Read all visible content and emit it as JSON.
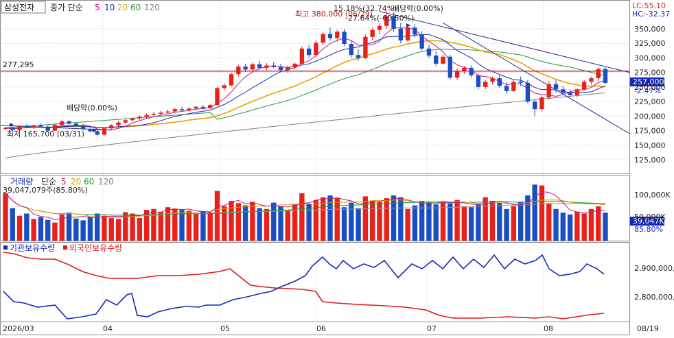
{
  "colors": {
    "up": "#e8221b",
    "down": "#1a4fc4",
    "ma5": "#c0158a",
    "ma10": "#1c2ea0",
    "ma20": "#e8a000",
    "ma60": "#1f9a3a",
    "ma120": "#808080",
    "priceLine": "#c0103a",
    "trend": "#2a2a8a",
    "vol5": "#c0158a",
    "vol20": "#d4a000",
    "vol60": "#1f9a3a",
    "vol120": "#9a9a9a",
    "inst": "#1428b8",
    "foreign": "#e01818",
    "lcColor": "#e01818",
    "hcColor": "#1428b8"
  },
  "price_panel": {
    "legend": {
      "stock": "삼성전자",
      "series": "종가 단순",
      "p5": "5",
      "p10": "10",
      "p20": "20",
      "p60": "60",
      "p120": "120"
    },
    "lc": "LC:55.10",
    "hc": "HC:-32.37",
    "ref_line_label": "277,295",
    "ref_line_value": 277295,
    "current_price_label": "257,000",
    "current_change_label": "-2.47%",
    "annotations": {
      "low": "최저 165,700 (03/31)",
      "high": "최고 380,000 (06/29)",
      "pct_high": "15.18%(32.74%)",
      "pct_high2": "-27.64%(-60.50%)",
      "div1": "배당락(0.00%)",
      "div2": "배당락(0.00%)"
    },
    "yticks": [
      "350,000",
      "325,000",
      "300,000",
      "275,000",
      "250,000",
      "225,000",
      "200,000",
      "175,000",
      "150,000",
      "125,000"
    ]
  },
  "volume_panel": {
    "legend": {
      "name": "거래량",
      "series": "단순",
      "p5": "5",
      "p20": "20",
      "p60": "60",
      "p120": "120"
    },
    "last_value_label": "39,047,079주(85.80%)",
    "current_label": "39,047K",
    "pct_label": "85.80%",
    "yticks": [
      "100,000K",
      "50,000K"
    ]
  },
  "holdings_panel": {
    "legend": {
      "inst": "기관보유수량",
      "foreign": "외국인보유수량"
    },
    "yticks": [
      "2,900,000,0",
      "2,800,000,0"
    ]
  },
  "xaxis": {
    "labels": [
      "2026/03",
      "04",
      "05",
      "06",
      "07",
      "08",
      "08/19"
    ]
  },
  "chart_data": {
    "type": "candlestick",
    "title": "삼성전자",
    "series_note": "종가 단순 이동평균 5 / 10 / 20 / 60 / 120",
    "ylim": [
      105000,
      390000
    ],
    "months": [
      "2026/03",
      "04",
      "05",
      "06",
      "07",
      "08"
    ],
    "candles": [
      [
        178000,
        181000,
        176000,
        180000
      ],
      [
        180000,
        182000,
        175000,
        176000
      ],
      [
        176000,
        184000,
        174000,
        183000
      ],
      [
        183000,
        186000,
        179000,
        181000
      ],
      [
        181000,
        185000,
        178000,
        184000
      ],
      [
        184000,
        187000,
        181000,
        182000
      ],
      [
        182000,
        184000,
        173000,
        175000
      ],
      [
        175000,
        186000,
        174000,
        185000
      ],
      [
        185000,
        193000,
        184000,
        191000
      ],
      [
        191000,
        193000,
        185000,
        187000
      ],
      [
        187000,
        190000,
        181000,
        183000
      ],
      [
        183000,
        186000,
        176000,
        178000
      ],
      [
        178000,
        182000,
        172000,
        174000
      ],
      [
        174000,
        178000,
        166000,
        168000
      ],
      [
        168000,
        180000,
        166000,
        179000
      ],
      [
        179000,
        186000,
        176000,
        184000
      ],
      [
        184000,
        192000,
        182000,
        189000
      ],
      [
        189000,
        196000,
        186000,
        193000
      ],
      [
        193000,
        198000,
        190000,
        196000
      ],
      [
        196000,
        201000,
        193000,
        199000
      ],
      [
        199000,
        205000,
        196000,
        202000
      ],
      [
        202000,
        207000,
        199000,
        204000
      ],
      [
        204000,
        209000,
        201000,
        206000
      ],
      [
        206000,
        211000,
        203000,
        208000
      ],
      [
        208000,
        214000,
        205000,
        212000
      ],
      [
        212000,
        216000,
        208000,
        210000
      ],
      [
        210000,
        215000,
        207000,
        213000
      ],
      [
        213000,
        218000,
        210000,
        216000
      ],
      [
        216000,
        219000,
        211000,
        214000
      ],
      [
        214000,
        221000,
        212000,
        219000
      ],
      [
        219000,
        250000,
        218000,
        248000
      ],
      [
        248000,
        256000,
        244000,
        253000
      ],
      [
        253000,
        275000,
        250000,
        272000
      ],
      [
        272000,
        288000,
        268000,
        285000
      ],
      [
        285000,
        290000,
        276000,
        280000
      ],
      [
        280000,
        292000,
        277000,
        289000
      ],
      [
        289000,
        295000,
        280000,
        283000
      ],
      [
        283000,
        291000,
        279000,
        287000
      ],
      [
        287000,
        293000,
        282000,
        285000
      ],
      [
        285000,
        290000,
        276000,
        279000
      ],
      [
        279000,
        287000,
        275000,
        284000
      ],
      [
        284000,
        292000,
        280000,
        290000
      ],
      [
        290000,
        320000,
        288000,
        316000
      ],
      [
        316000,
        322000,
        300000,
        305000
      ],
      [
        305000,
        330000,
        302000,
        326000
      ],
      [
        326000,
        345000,
        322000,
        341000
      ],
      [
        341000,
        352000,
        330000,
        334000
      ],
      [
        334000,
        348000,
        328000,
        345000
      ],
      [
        345000,
        350000,
        320000,
        324000
      ],
      [
        324000,
        330000,
        300000,
        305000
      ],
      [
        305000,
        315000,
        295000,
        300000
      ],
      [
        300000,
        340000,
        298000,
        336000
      ],
      [
        336000,
        352000,
        330000,
        348000
      ],
      [
        348000,
        360000,
        340000,
        355000
      ],
      [
        355000,
        380000,
        350000,
        372000
      ],
      [
        372000,
        378000,
        345000,
        350000
      ],
      [
        350000,
        360000,
        325000,
        330000
      ],
      [
        330000,
        355000,
        328000,
        352000
      ],
      [
        352000,
        358000,
        335000,
        340000
      ],
      [
        340000,
        346000,
        312000,
        316000
      ],
      [
        316000,
        322000,
        300000,
        304000
      ],
      [
        304000,
        312000,
        285000,
        290000
      ],
      [
        290000,
        306000,
        288000,
        302000
      ],
      [
        302000,
        305000,
        262000,
        266000
      ],
      [
        266000,
        282000,
        262000,
        278000
      ],
      [
        278000,
        286000,
        272000,
        283000
      ],
      [
        283000,
        287000,
        266000,
        270000
      ],
      [
        270000,
        273000,
        246000,
        250000
      ],
      [
        250000,
        262000,
        246000,
        259000
      ],
      [
        259000,
        268000,
        254000,
        265000
      ],
      [
        265000,
        270000,
        248000,
        252000
      ],
      [
        252000,
        258000,
        238000,
        243000
      ],
      [
        243000,
        262000,
        242000,
        259000
      ],
      [
        259000,
        268000,
        252000,
        257000
      ],
      [
        257000,
        262000,
        222000,
        225000
      ],
      [
        225000,
        228000,
        200000,
        212000
      ],
      [
        212000,
        235000,
        208000,
        232000
      ],
      [
        232000,
        260000,
        228000,
        255000
      ],
      [
        255000,
        262000,
        240000,
        246000
      ],
      [
        246000,
        252000,
        236000,
        240000
      ],
      [
        240000,
        246000,
        232000,
        236000
      ],
      [
        236000,
        248000,
        232000,
        246000
      ],
      [
        246000,
        262000,
        244000,
        259000
      ],
      [
        259000,
        268000,
        254000,
        265000
      ],
      [
        265000,
        285000,
        260000,
        281000
      ],
      [
        281000,
        284000,
        255000,
        257000
      ]
    ],
    "volumes": [
      105,
      72,
      55,
      60,
      48,
      52,
      46,
      40,
      58,
      62,
      49,
      45,
      52,
      60,
      55,
      50,
      48,
      63,
      60,
      50,
      68,
      70,
      63,
      74,
      71,
      68,
      66,
      60,
      64,
      62,
      110,
      76,
      88,
      83,
      78,
      86,
      72,
      70,
      84,
      76,
      68,
      80,
      105,
      82,
      90,
      96,
      100,
      94,
      74,
      84,
      72,
      98,
      88,
      86,
      94,
      100,
      96,
      70,
      78,
      88,
      84,
      80,
      86,
      82,
      90,
      76,
      74,
      80,
      96,
      88,
      84,
      70,
      76,
      86,
      100,
      124,
      122,
      82,
      70,
      62,
      58,
      64,
      60,
      70,
      76,
      62
    ],
    "ma_last": {
      "ma5": 262000,
      "ma10": 258000,
      "ma20": 248000,
      "ma60": 292000,
      "ma120": 240000
    }
  }
}
